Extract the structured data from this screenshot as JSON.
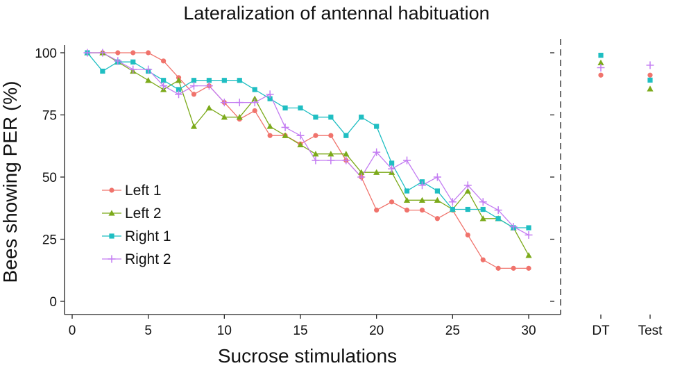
{
  "chart_data": {
    "type": "line",
    "title": "Lateralization of antennal habituation",
    "xlabel": "Sucrose stimulations",
    "ylabel": "Bees showing PER (%)",
    "xlim": [
      0,
      32
    ],
    "ylim": [
      0,
      100
    ],
    "x_ticks": [
      "0",
      "5",
      "10",
      "15",
      "20",
      "25",
      "30"
    ],
    "y_ticks": [
      "0",
      "25",
      "50",
      "75",
      "100"
    ],
    "extra_categories": [
      "DT",
      "Test"
    ],
    "legend_position": "center-left",
    "x": [
      1,
      2,
      3,
      4,
      5,
      6,
      7,
      8,
      9,
      10,
      11,
      12,
      13,
      14,
      15,
      16,
      17,
      18,
      19,
      20,
      21,
      22,
      23,
      24,
      25,
      26,
      27,
      28,
      29,
      30
    ],
    "series": [
      {
        "name": "Left 1",
        "color": "#f0736c",
        "marker": "circle",
        "values": [
          100,
          100,
          100,
          100,
          100,
          96.7,
          90,
          83.3,
          86.7,
          80,
          73.3,
          76.7,
          66.7,
          66.7,
          63.3,
          66.7,
          66.7,
          56.7,
          50,
          36.7,
          40,
          36.7,
          36.7,
          33.3,
          36.7,
          26.7,
          16.7,
          13.3,
          13.3,
          13.3
        ],
        "extra_values": [
          91,
          91
        ]
      },
      {
        "name": "Left 2",
        "color": "#7caa1b",
        "marker": "triangle",
        "values": [
          100,
          100,
          96.3,
          92.6,
          88.9,
          85.2,
          88.9,
          70.4,
          77.8,
          74.1,
          74.1,
          81.5,
          70.4,
          66.7,
          63,
          59.3,
          59.3,
          59.3,
          51.9,
          51.9,
          51.9,
          40.7,
          40.7,
          40.7,
          37,
          44.4,
          33.3,
          33.3,
          29.6,
          18.5
        ],
        "extra_values": [
          96,
          85.5
        ]
      },
      {
        "name": "Right 1",
        "color": "#1fbec2",
        "marker": "square",
        "values": [
          100,
          92.6,
          96.3,
          96.3,
          92.6,
          88.9,
          85.2,
          88.9,
          88.9,
          88.9,
          88.9,
          85.2,
          81.5,
          77.8,
          77.8,
          74.1,
          74.1,
          66.7,
          74.1,
          70.4,
          55.6,
          44.4,
          48.1,
          44.4,
          37,
          37,
          37,
          33.3,
          29.6,
          29.6
        ],
        "extra_values": [
          99,
          89
        ]
      },
      {
        "name": "Right 2",
        "color": "#c37cf2",
        "marker": "plus",
        "values": [
          100,
          100,
          96.7,
          93.3,
          93.3,
          86.7,
          83.3,
          86.7,
          86.7,
          80,
          80,
          80,
          83.3,
          70,
          66.7,
          56.7,
          56.7,
          56.7,
          50,
          60,
          53.3,
          56.7,
          46.7,
          50,
          40,
          46.7,
          40,
          36.7,
          30,
          26.7
        ],
        "extra_values": [
          94,
          95
        ]
      }
    ]
  }
}
